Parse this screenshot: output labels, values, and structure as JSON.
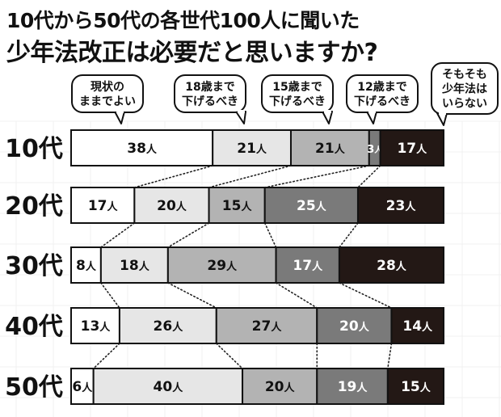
{
  "chart_data": {
    "type": "bar",
    "orientation": "horizontal",
    "stacked": true,
    "title": "10代から50代の各世代100人に聞いた",
    "subtitle": "少年法改正は必要だと思いますか?",
    "xlabel": "",
    "ylabel": "",
    "categories": [
      "10代",
      "20代",
      "30代",
      "40代",
      "50代"
    ],
    "unit": "人",
    "series": [
      {
        "name": "現状のままでよい",
        "label_lines": [
          "現状の",
          "ままでよい"
        ],
        "values": [
          38,
          17,
          8,
          13,
          6
        ],
        "color": "#ffffff",
        "text_color": "#111111"
      },
      {
        "name": "18歳まで下げるべき",
        "label_lines": [
          "18歳まで",
          "下げるべき"
        ],
        "values": [
          21,
          20,
          18,
          26,
          40
        ],
        "color": "#e6e6e6",
        "text_color": "#111111"
      },
      {
        "name": "15歳まで下げるべき",
        "label_lines": [
          "15歳まで",
          "下げるべき"
        ],
        "values": [
          21,
          15,
          29,
          27,
          20
        ],
        "color": "#b3b3b3",
        "text_color": "#111111"
      },
      {
        "name": "12歳まで下げるべき",
        "label_lines": [
          "12歳まで",
          "下げるべき"
        ],
        "values": [
          3,
          25,
          17,
          20,
          19
        ],
        "color": "#7a7a7a",
        "text_color": "#ffffff"
      },
      {
        "name": "そもそも少年法はいらない",
        "label_lines": [
          "そもそも",
          "少年法は",
          "いらない"
        ],
        "values": [
          17,
          23,
          28,
          14,
          15
        ],
        "color": "#231815",
        "text_color": "#ffffff"
      }
    ],
    "legend": "top",
    "grid": false
  }
}
